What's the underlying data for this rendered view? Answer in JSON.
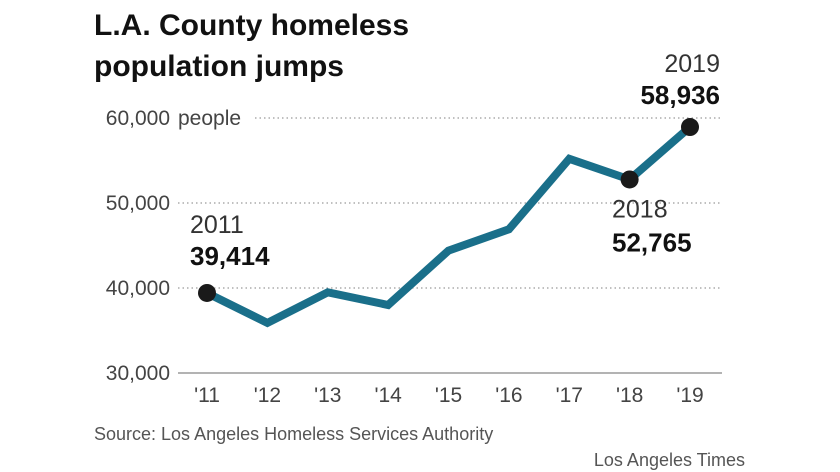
{
  "chart_data": {
    "type": "line",
    "title_lines": [
      "L.A. County homeless",
      "population jumps"
    ],
    "y_unit": "people",
    "x_tick_labels": [
      "'11",
      "'12",
      "'13",
      "'14",
      "'15",
      "'16",
      "'17",
      "'18",
      "'19"
    ],
    "x": [
      2011,
      2012,
      2013,
      2014,
      2015,
      2016,
      2017,
      2018,
      2019
    ],
    "values": [
      39414,
      35900,
      39500,
      38000,
      44400,
      46900,
      55200,
      52765,
      58936
    ],
    "y_ticks": [
      30000,
      40000,
      50000,
      60000
    ],
    "y_tick_labels": [
      "30,000",
      "40,000",
      "50,000",
      "60,000"
    ],
    "ylim": [
      30000,
      60000
    ],
    "grid": true,
    "line_color": "#1a6f8a",
    "marker_color": "#1a1a1a",
    "annotations": [
      {
        "x": 2011,
        "year_label": "2011",
        "value_label": "39,414"
      },
      {
        "x": 2018,
        "year_label": "2018",
        "value_label": "52,765"
      },
      {
        "x": 2019,
        "year_label": "2019",
        "value_label": "58,936"
      }
    ],
    "source": "Source: Los Angeles Homeless Services Authority",
    "credit": "Los Angeles Times"
  }
}
